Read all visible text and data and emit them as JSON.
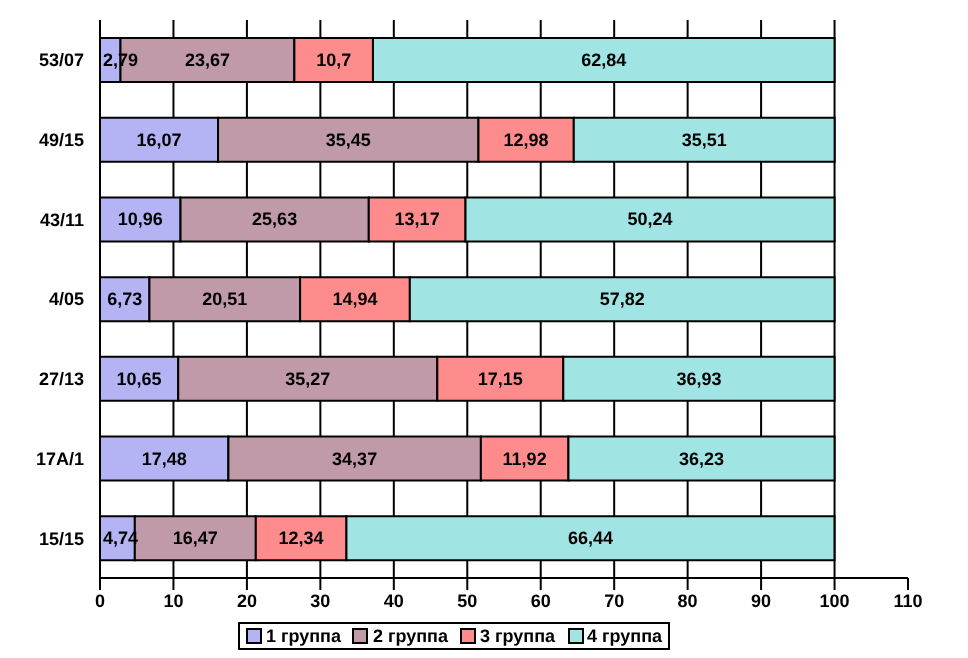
{
  "chart_data": {
    "type": "bar",
    "orientation": "horizontal",
    "stacked": true,
    "categories": [
      "53/07",
      "49/15",
      "43/11",
      "4/05",
      "27/13",
      "17A/1",
      "15/15"
    ],
    "series": [
      {
        "name": "1 группа",
        "color": "#b4b4f4",
        "values": [
          2.79,
          16.07,
          10.96,
          6.73,
          10.65,
          17.48,
          4.74
        ],
        "value_labels": [
          "2,79",
          "16,07",
          "10,96",
          "6,73",
          "10,65",
          "17,48",
          "4,74"
        ]
      },
      {
        "name": "2 группа",
        "color": "#c09aa8",
        "values": [
          23.67,
          35.45,
          25.63,
          20.51,
          35.27,
          34.37,
          16.47
        ],
        "value_labels": [
          "23,67",
          "35,45",
          "25,63",
          "20,51",
          "35,27",
          "34,37",
          "16,47"
        ]
      },
      {
        "name": "3 группа",
        "color": "#ff8c8c",
        "values": [
          10.7,
          12.98,
          13.17,
          14.94,
          17.15,
          11.92,
          12.34
        ],
        "value_labels": [
          "10,7",
          "12,98",
          "13,17",
          "14,94",
          "17,15",
          "11,92",
          "12,34"
        ]
      },
      {
        "name": "4 группа",
        "color": "#a0e4e4",
        "values": [
          62.84,
          35.51,
          50.24,
          57.82,
          36.93,
          36.23,
          66.44
        ],
        "value_labels": [
          "62,84",
          "35,51",
          "50,24",
          "57,82",
          "36,93",
          "36,23",
          "66,44"
        ]
      }
    ],
    "xlim": [
      0,
      110
    ],
    "xticks": [
      0,
      10,
      20,
      30,
      40,
      50,
      60,
      70,
      80,
      90,
      100,
      110
    ],
    "grid": "x",
    "legend": "bottom"
  }
}
